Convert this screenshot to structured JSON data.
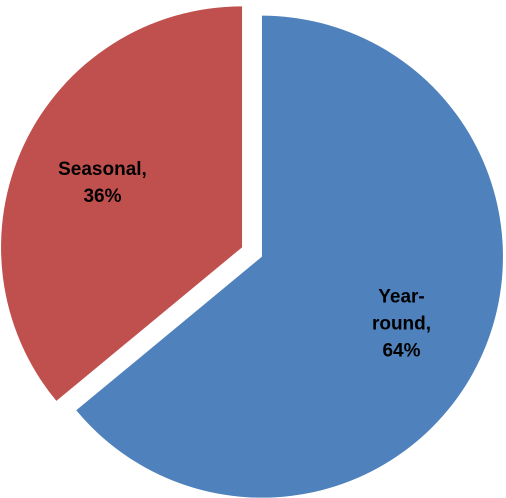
{
  "chart_data": {
    "type": "pie",
    "title": "",
    "slices": [
      {
        "label": "Year-round",
        "value": 64,
        "color": "#4F81BD",
        "data_label_lines": [
          "Year-",
          "round,",
          "64%"
        ]
      },
      {
        "label": "Seasonal",
        "value": 36,
        "color": "#C0504D",
        "data_label_lines": [
          "Seasonal,",
          "36%"
        ]
      }
    ],
    "start_angle_deg": 0,
    "direction": "clockwise",
    "exploded": true,
    "legend": "none"
  }
}
